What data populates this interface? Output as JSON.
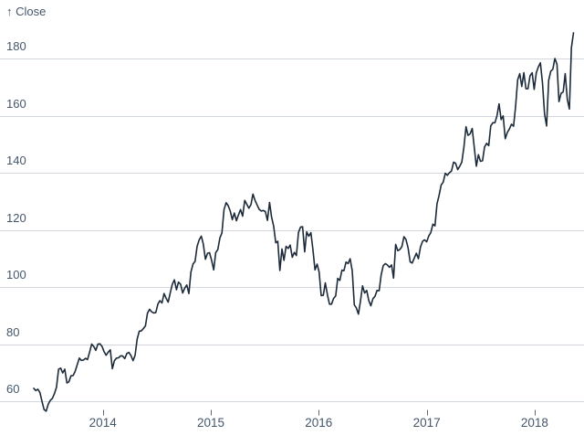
{
  "colors": {
    "background": "#ffffff",
    "line": "#1c2a3a",
    "grid": "#d2d7dd",
    "text": "#44566a",
    "tick_mark": "#5a6876"
  },
  "chart_data": {
    "type": "line",
    "title": "",
    "ylabel": "↑ Close",
    "xlabel": "",
    "grid": true,
    "legend": "none",
    "x_tick_years": [
      2014,
      2015,
      2016,
      2017,
      2018
    ],
    "x_tick_labels": [
      "2014",
      "2015",
      "2016",
      "2017",
      "2018"
    ],
    "y_ticks": [
      180,
      160,
      140,
      120,
      100,
      80,
      60
    ],
    "y_tick_labels": [
      "180",
      "160",
      "140",
      "120",
      "100",
      "80",
      "60"
    ],
    "xlim": [
      2013.36,
      2018.36
    ],
    "ylim": [
      56,
      191
    ],
    "series": [
      {
        "name": "Close",
        "interval": "weekly",
        "values": [
          64.5,
          63.7,
          64.2,
          63.0,
          59.8,
          57.1,
          56.5,
          59.0,
          60.3,
          61.0,
          62.7,
          64.9,
          71.2,
          71.6,
          69.9,
          71.2,
          66.4,
          66.8,
          68.9,
          69.0,
          70.4,
          72.7,
          75.1,
          74.3,
          74.4,
          75.0,
          74.6,
          77.2,
          80.0,
          79.2,
          77.8,
          80.0,
          80.1,
          79.2,
          77.3,
          76.1,
          77.2,
          78.0,
          71.4,
          74.2,
          75.1,
          75.2,
          75.9,
          75.8,
          74.9,
          76.7,
          77.1,
          76.0,
          74.2,
          76.0,
          81.7,
          84.5,
          84.6,
          85.4,
          86.4,
          90.8,
          92.2,
          91.3,
          90.9,
          91.0,
          94.0,
          95.2,
          94.4,
          97.7,
          96.1,
          94.7,
          98.0,
          100.9,
          102.5,
          99.0,
          101.7,
          101.0,
          97.9,
          99.6,
          100.7,
          97.7,
          105.2,
          108.0,
          109.0,
          114.2,
          116.5,
          117.8,
          115.0,
          109.7,
          111.8,
          112.0,
          109.3,
          106.0,
          112.0,
          113.1,
          117.2,
          118.9,
          127.1,
          129.5,
          128.5,
          126.6,
          123.6,
          125.9,
          123.2,
          125.3,
          127.1,
          124.8,
          130.3,
          129.0,
          127.6,
          128.8,
          132.5,
          130.3,
          128.7,
          127.2,
          126.6,
          126.8,
          126.4,
          123.3,
          129.6,
          124.5,
          121.3,
          115.5,
          116.0,
          105.8,
          113.3,
          109.3,
          114.2,
          113.5,
          114.7,
          110.4,
          112.1,
          111.0,
          119.1,
          121.0,
          121.1,
          112.3,
          119.3,
          117.8,
          119.0,
          113.2,
          106.0,
          108.0,
          105.3,
          97.0,
          97.1,
          101.4,
          97.3,
          94.0,
          94.0,
          96.0,
          96.9,
          103.0,
          102.3,
          105.9,
          105.7,
          108.7,
          108.2,
          109.9,
          105.7,
          93.7,
          92.7,
          90.5,
          95.2,
          100.4,
          97.9,
          98.8,
          95.3,
          93.4,
          95.9,
          96.7,
          98.8,
          98.7,
          104.2,
          107.5,
          108.2,
          107.7,
          106.9,
          107.7,
          103.1,
          114.9,
          112.7,
          113.1,
          114.1,
          117.6,
          116.6,
          113.7,
          108.8,
          108.4,
          110.1,
          111.8,
          109.9,
          114.0,
          116.0,
          116.5,
          115.8,
          117.9,
          119.0,
          122.0,
          121.4,
          129.1,
          132.1,
          135.7,
          136.7,
          139.8,
          139.1,
          140.0,
          140.6,
          143.7,
          143.3,
          141.1,
          142.3,
          143.7,
          149.0,
          156.1,
          153.1,
          153.6,
          155.5,
          149.0,
          142.3,
          146.3,
          144.0,
          144.2,
          149.0,
          150.3,
          149.5,
          156.4,
          157.5,
          157.5,
          159.9,
          164.1,
          158.6,
          159.9,
          151.9,
          154.1,
          155.3,
          157.0,
          156.3,
          163.1,
          172.5,
          174.7,
          170.2,
          175.0,
          169.4,
          169.4,
          174.0,
          175.0,
          169.2,
          175.0,
          177.1,
          178.5,
          171.5,
          160.5,
          156.4,
          172.4,
          175.6,
          176.2,
          180.0,
          178.0,
          164.9,
          167.8,
          168.3,
          174.7,
          165.7,
          162.3,
          183.8,
          189.0
        ]
      }
    ]
  }
}
